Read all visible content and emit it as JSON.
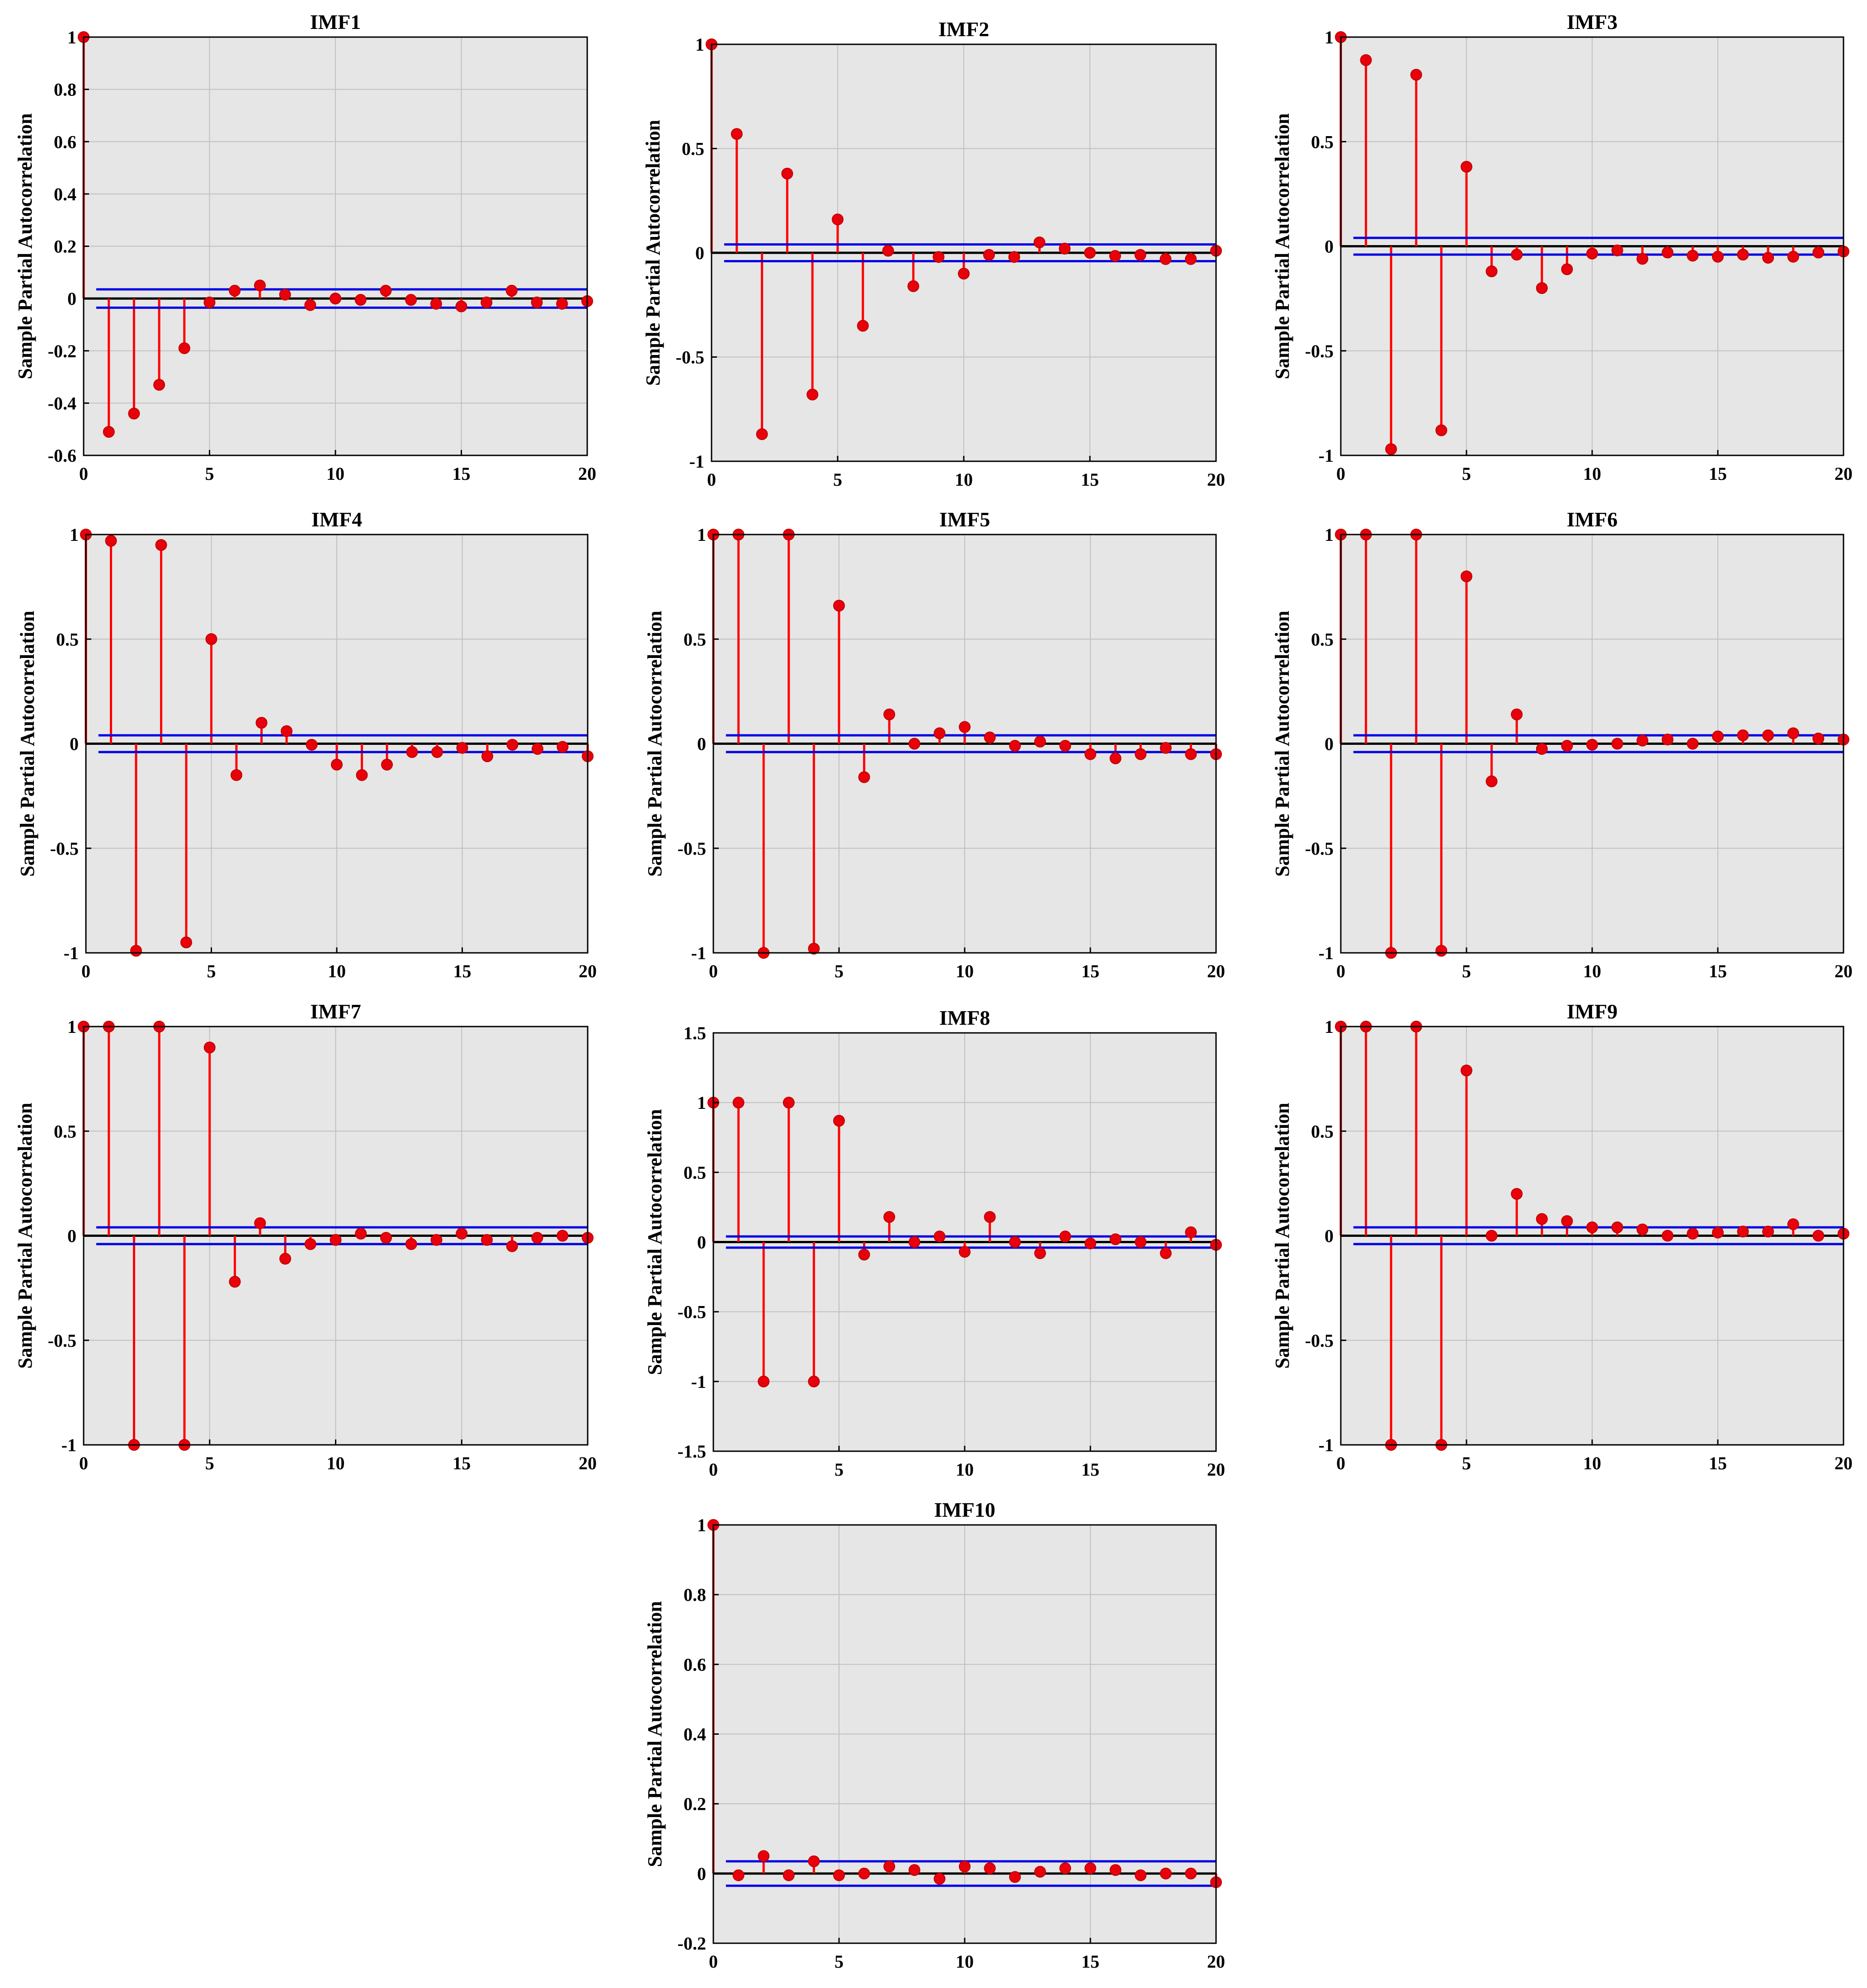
{
  "colors": {
    "plot_background": "#e6e6e6",
    "grid": "#c0c0c0",
    "stem": "#ff0000",
    "marker": "#e8000b",
    "bounds": "#0000e6",
    "zero_line": "#000000",
    "axis": "#000000"
  },
  "chart_data": [
    {
      "type": "stem",
      "title": "IMF1",
      "ylabel": "Sample Partial Autocorrelation",
      "xlabel": "",
      "xlim": [
        0,
        20
      ],
      "ylim": [
        -0.6,
        1
      ],
      "xticks": [
        0,
        5,
        10,
        15,
        20
      ],
      "xtick_labels": [
        "0",
        "5",
        "10",
        "15",
        "20"
      ],
      "yticks": [
        -0.6,
        -0.4,
        -0.2,
        0,
        0.2,
        0.4,
        0.6,
        0.8,
        1
      ],
      "ytick_labels": [
        "-0.6",
        "-0.4",
        "-0.2",
        "0",
        "0.2",
        "0.4",
        "0.6",
        "0.8",
        "1"
      ],
      "lags": [
        0,
        1,
        2,
        3,
        4,
        5,
        6,
        7,
        8,
        9,
        10,
        11,
        12,
        13,
        14,
        15,
        16,
        17,
        18,
        19,
        20
      ],
      "values": [
        1,
        -0.51,
        -0.44,
        -0.33,
        -0.19,
        -0.015,
        0.03,
        0.05,
        0.015,
        -0.025,
        0,
        -0.005,
        0.03,
        -0.005,
        -0.02,
        -0.03,
        -0.015,
        0.03,
        -0.015,
        -0.02,
        -0.01
      ],
      "conf_bounds": [
        0.035,
        -0.035
      ]
    },
    {
      "type": "stem",
      "title": "IMF2",
      "ylabel": "Sample Partial Autocorrelation",
      "xlabel": "",
      "xlim": [
        0,
        20
      ],
      "ylim": [
        -1,
        1
      ],
      "xticks": [
        0,
        5,
        10,
        15,
        20
      ],
      "xtick_labels": [
        "0",
        "5",
        "10",
        "15",
        "20"
      ],
      "yticks": [
        -1,
        -0.5,
        0,
        0.5,
        1
      ],
      "ytick_labels": [
        "-1",
        "-0.5",
        "0",
        "0.5",
        "1"
      ],
      "lags": [
        0,
        1,
        2,
        3,
        4,
        5,
        6,
        7,
        8,
        9,
        10,
        11,
        12,
        13,
        14,
        15,
        16,
        17,
        18,
        19,
        20
      ],
      "values": [
        1,
        0.57,
        -0.87,
        0.38,
        -0.68,
        0.16,
        -0.35,
        0.01,
        -0.16,
        -0.02,
        -0.1,
        -0.01,
        -0.02,
        0.05,
        0.02,
        0,
        -0.015,
        -0.01,
        -0.03,
        -0.03,
        0.01
      ],
      "conf_bounds": [
        0.04,
        -0.04
      ]
    },
    {
      "type": "stem",
      "title": "IMF3",
      "ylabel": "Sample Partial Autocorrelation",
      "xlabel": "",
      "xlim": [
        0,
        20
      ],
      "ylim": [
        -1,
        1
      ],
      "xticks": [
        0,
        5,
        10,
        15,
        20
      ],
      "xtick_labels": [
        "0",
        "5",
        "10",
        "15",
        "20"
      ],
      "yticks": [
        -1,
        -0.5,
        0,
        0.5,
        1
      ],
      "ytick_labels": [
        "-1",
        "-0.5",
        "0",
        "0.5",
        "1"
      ],
      "lags": [
        0,
        1,
        2,
        3,
        4,
        5,
        6,
        7,
        8,
        9,
        10,
        11,
        12,
        13,
        14,
        15,
        16,
        17,
        18,
        19,
        20
      ],
      "values": [
        1,
        0.89,
        -0.97,
        0.82,
        -0.88,
        0.38,
        -0.12,
        -0.04,
        -0.2,
        -0.11,
        -0.035,
        -0.02,
        -0.06,
        -0.03,
        -0.045,
        -0.05,
        -0.04,
        -0.055,
        -0.05,
        -0.03,
        -0.025
      ],
      "conf_bounds": [
        0.04,
        -0.04
      ]
    },
    {
      "type": "stem",
      "title": "IMF4",
      "ylabel": "Sample Partial Autocorrelation",
      "xlabel": "",
      "xlim": [
        0,
        20
      ],
      "ylim": [
        -1,
        1
      ],
      "xticks": [
        0,
        5,
        10,
        15,
        20
      ],
      "xtick_labels": [
        "0",
        "5",
        "10",
        "15",
        "20"
      ],
      "yticks": [
        -1,
        -0.5,
        0,
        0.5,
        1
      ],
      "ytick_labels": [
        "-1",
        "-0.5",
        "0",
        "0.5",
        "1"
      ],
      "lags": [
        0,
        1,
        2,
        3,
        4,
        5,
        6,
        7,
        8,
        9,
        10,
        11,
        12,
        13,
        14,
        15,
        16,
        17,
        18,
        19,
        20
      ],
      "values": [
        1,
        0.97,
        -0.99,
        0.95,
        -0.95,
        0.5,
        -0.15,
        0.1,
        0.06,
        -0.005,
        -0.1,
        -0.15,
        -0.1,
        -0.04,
        -0.04,
        -0.02,
        -0.06,
        -0.005,
        -0.025,
        -0.015,
        -0.06
      ],
      "conf_bounds": [
        0.04,
        -0.04
      ]
    },
    {
      "type": "stem",
      "title": "IMF5",
      "ylabel": "Sample Partial Autocorrelation",
      "xlabel": "",
      "xlim": [
        0,
        20
      ],
      "ylim": [
        -1,
        1
      ],
      "xticks": [
        0,
        5,
        10,
        15,
        20
      ],
      "xtick_labels": [
        "0",
        "5",
        "10",
        "15",
        "20"
      ],
      "yticks": [
        -1,
        -0.5,
        0,
        0.5,
        1
      ],
      "ytick_labels": [
        "-1",
        "-0.5",
        "0",
        "0.5",
        "1"
      ],
      "lags": [
        0,
        1,
        2,
        3,
        4,
        5,
        6,
        7,
        8,
        9,
        10,
        11,
        12,
        13,
        14,
        15,
        16,
        17,
        18,
        19,
        20
      ],
      "values": [
        1,
        1,
        -1,
        1,
        -0.98,
        0.66,
        -0.16,
        0.14,
        0,
        0.05,
        0.08,
        0.03,
        -0.01,
        0.01,
        -0.01,
        -0.05,
        -0.07,
        -0.05,
        -0.02,
        -0.05,
        -0.05
      ],
      "conf_bounds": [
        0.04,
        -0.04
      ]
    },
    {
      "type": "stem",
      "title": "IMF6",
      "ylabel": "Sample Partial Autocorrelation",
      "xlabel": "",
      "xlim": [
        0,
        20
      ],
      "ylim": [
        -1,
        1
      ],
      "xticks": [
        0,
        5,
        10,
        15,
        20
      ],
      "xtick_labels": [
        "0",
        "5",
        "10",
        "15",
        "20"
      ],
      "yticks": [
        -1,
        -0.5,
        0,
        0.5,
        1
      ],
      "ytick_labels": [
        "-1",
        "-0.5",
        "0",
        "0.5",
        "1"
      ],
      "lags": [
        0,
        1,
        2,
        3,
        4,
        5,
        6,
        7,
        8,
        9,
        10,
        11,
        12,
        13,
        14,
        15,
        16,
        17,
        18,
        19,
        20
      ],
      "values": [
        1,
        1,
        -1,
        1,
        -0.99,
        0.8,
        -0.18,
        0.14,
        -0.025,
        -0.01,
        -0.005,
        0,
        0.015,
        0.02,
        0,
        0.035,
        0.04,
        0.04,
        0.05,
        0.025,
        0.02
      ],
      "conf_bounds": [
        0.04,
        -0.04
      ]
    },
    {
      "type": "stem",
      "title": "IMF7",
      "ylabel": "Sample Partial Autocorrelation",
      "xlabel": "",
      "xlim": [
        0,
        20
      ],
      "ylim": [
        -1,
        1
      ],
      "xticks": [
        0,
        5,
        10,
        15,
        20
      ],
      "xtick_labels": [
        "0",
        "5",
        "10",
        "15",
        "20"
      ],
      "yticks": [
        -1,
        -0.5,
        0,
        0.5,
        1
      ],
      "ytick_labels": [
        "-1",
        "-0.5",
        "0",
        "0.5",
        "1"
      ],
      "lags": [
        0,
        1,
        2,
        3,
        4,
        5,
        6,
        7,
        8,
        9,
        10,
        11,
        12,
        13,
        14,
        15,
        16,
        17,
        18,
        19,
        20
      ],
      "values": [
        1,
        1,
        -1,
        1,
        -1,
        0.9,
        -0.22,
        0.06,
        -0.11,
        -0.04,
        -0.02,
        0.01,
        -0.01,
        -0.04,
        -0.02,
        0.01,
        -0.02,
        -0.05,
        -0.01,
        0,
        -0.01
      ],
      "conf_bounds": [
        0.04,
        -0.04
      ]
    },
    {
      "type": "stem",
      "title": "IMF8",
      "ylabel": "Sample Partial Autocorrelation",
      "xlabel": "",
      "xlim": [
        0,
        20
      ],
      "ylim": [
        -1.5,
        1.5
      ],
      "xticks": [
        0,
        5,
        10,
        15,
        20
      ],
      "xtick_labels": [
        "0",
        "5",
        "10",
        "15",
        "20"
      ],
      "yticks": [
        -1.5,
        -1,
        -0.5,
        0,
        0.5,
        1,
        1.5
      ],
      "ytick_labels": [
        "-1.5",
        "-1",
        "-0.5",
        "0",
        "0.5",
        "1",
        "1.5"
      ],
      "lags": [
        0,
        1,
        2,
        3,
        4,
        5,
        6,
        7,
        8,
        9,
        10,
        11,
        12,
        13,
        14,
        15,
        16,
        17,
        18,
        19,
        20
      ],
      "values": [
        1,
        1,
        -1,
        1,
        -1,
        0.87,
        -0.09,
        0.18,
        0,
        0.04,
        -0.07,
        0.18,
        0,
        -0.08,
        0.04,
        -0.01,
        0.02,
        0,
        -0.08,
        0.07,
        -0.02
      ],
      "conf_bounds": [
        0.04,
        -0.04
      ]
    },
    {
      "type": "stem",
      "title": "IMF9",
      "ylabel": "Sample Partial Autocorrelation",
      "xlabel": "",
      "xlim": [
        0,
        20
      ],
      "ylim": [
        -1,
        1
      ],
      "xticks": [
        0,
        5,
        10,
        15,
        20
      ],
      "xtick_labels": [
        "0",
        "5",
        "10",
        "15",
        "20"
      ],
      "yticks": [
        -1,
        -0.5,
        0,
        0.5,
        1
      ],
      "ytick_labels": [
        "-1",
        "-0.5",
        "0",
        "0.5",
        "1"
      ],
      "lags": [
        0,
        1,
        2,
        3,
        4,
        5,
        6,
        7,
        8,
        9,
        10,
        11,
        12,
        13,
        14,
        15,
        16,
        17,
        18,
        19,
        20
      ],
      "values": [
        1,
        1,
        -1,
        1,
        -1,
        0.79,
        0,
        0.2,
        0.08,
        0.07,
        0.04,
        0.04,
        0.03,
        0,
        0.01,
        0.015,
        0.02,
        0.02,
        0.055,
        0,
        0.01
      ],
      "conf_bounds": [
        0.04,
        -0.04
      ]
    },
    {
      "type": "stem",
      "title": "IMF10",
      "ylabel": "Sample Partial Autocorrelation",
      "xlabel": "",
      "xlim": [
        0,
        20
      ],
      "ylim": [
        -0.2,
        1
      ],
      "xticks": [
        0,
        5,
        10,
        15,
        20
      ],
      "xtick_labels": [
        "0",
        "5",
        "10",
        "15",
        "20"
      ],
      "yticks": [
        -0.2,
        0,
        0.2,
        0.4,
        0.6,
        0.8,
        1
      ],
      "ytick_labels": [
        "-0.2",
        "0",
        "0.2",
        "0.4",
        "0.6",
        "0.8",
        "1"
      ],
      "lags": [
        0,
        1,
        2,
        3,
        4,
        5,
        6,
        7,
        8,
        9,
        10,
        11,
        12,
        13,
        14,
        15,
        16,
        17,
        18,
        19,
        20
      ],
      "values": [
        1,
        -0.005,
        0.05,
        -0.005,
        0.035,
        -0.005,
        0,
        0.02,
        0.01,
        -0.015,
        0.02,
        0.015,
        -0.01,
        0.005,
        0.015,
        0.015,
        0.01,
        -0.005,
        0,
        0,
        -0.025
      ],
      "conf_bounds": [
        0.035,
        -0.035
      ]
    }
  ]
}
